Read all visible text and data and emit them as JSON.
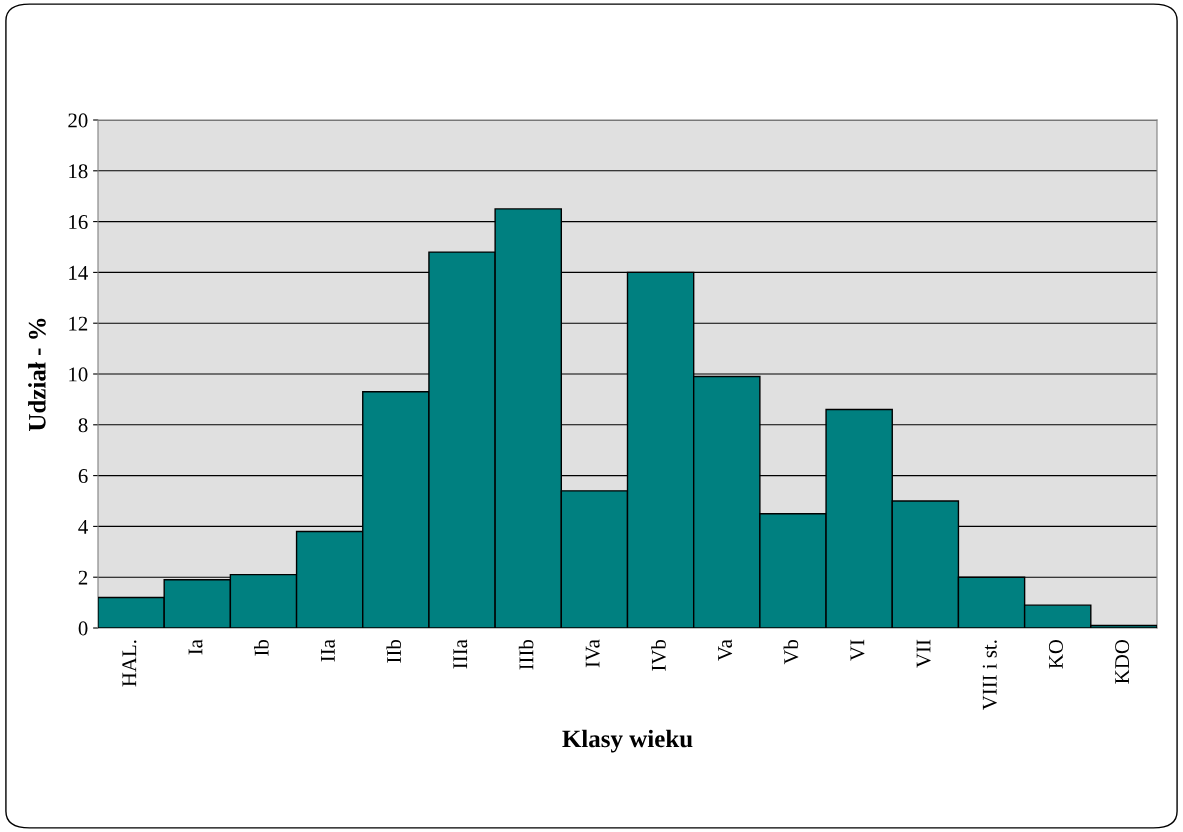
{
  "chart_data": {
    "type": "bar",
    "xlabel": "Klasy wieku",
    "ylabel": "Udział - %",
    "categories": [
      "HAL.",
      "Ia",
      "Ib",
      "IIa",
      "IIb",
      "IIIa",
      "IIIb",
      "IVa",
      "IVb",
      "Va",
      "Vb",
      "VI",
      "VII",
      "VIII i st.",
      "KO",
      "KDO"
    ],
    "values": [
      1.2,
      1.9,
      2.1,
      3.8,
      9.3,
      14.8,
      16.5,
      5.4,
      14.0,
      9.9,
      4.5,
      8.6,
      5.0,
      2.0,
      0.9,
      0.1
    ],
    "color": "#008080",
    "ylim": [
      0,
      20
    ],
    "yticks": [
      0,
      2,
      4,
      6,
      8,
      10,
      12,
      14,
      16,
      18,
      20
    ],
    "grid": "y"
  }
}
